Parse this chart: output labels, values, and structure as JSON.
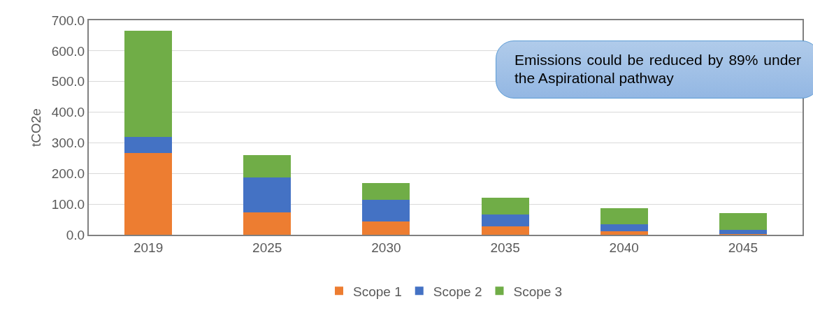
{
  "chart_data": {
    "type": "bar",
    "stacked": true,
    "ylabel": "tCO2e",
    "categories": [
      "2019",
      "2025",
      "2030",
      "2035",
      "2040",
      "2045"
    ],
    "series": [
      {
        "name": "Scope 1",
        "color": "#ed7d31",
        "values": [
          267,
          73,
          44,
          27,
          11,
          2
        ]
      },
      {
        "name": "Scope 2",
        "color": "#4472c4",
        "values": [
          52,
          114,
          70,
          39,
          23,
          15
        ]
      },
      {
        "name": "Scope 3",
        "color": "#70ad47",
        "values": [
          347,
          74,
          55,
          54,
          53,
          53
        ]
      }
    ],
    "ylim": [
      0,
      700
    ],
    "yticks": [
      {
        "value": 0,
        "label": "0.0"
      },
      {
        "value": 100,
        "label": "100.0"
      },
      {
        "value": 200,
        "label": "200.0"
      },
      {
        "value": 300,
        "label": "300.0"
      },
      {
        "value": 400,
        "label": "400.0"
      },
      {
        "value": 500,
        "label": "500.0"
      },
      {
        "value": 600,
        "label": "600.0"
      },
      {
        "value": 700,
        "label": "700.0"
      }
    ],
    "grid": "y",
    "legend": "bottom",
    "annotations": [
      "Emissions could be reduced by 89% under the Aspirational pathway"
    ]
  }
}
